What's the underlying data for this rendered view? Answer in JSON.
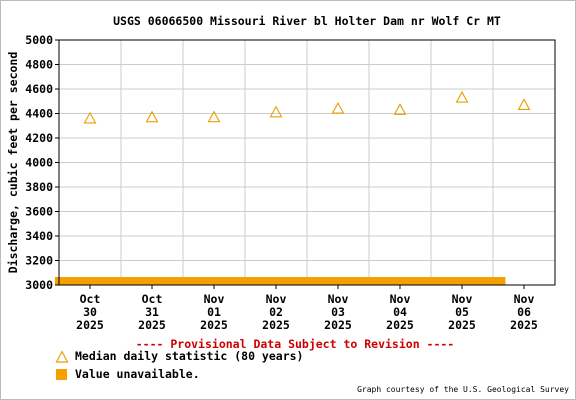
{
  "chart_data": {
    "type": "scatter",
    "title": "USGS 06066500 Missouri River bl Holter Dam nr Wolf Cr MT",
    "ylabel": "Discharge, cubic feet per second",
    "xlabel": "",
    "ylim": [
      3000,
      5000
    ],
    "yticks": [
      3000,
      3200,
      3400,
      3600,
      3800,
      4000,
      4200,
      4400,
      4600,
      4800,
      5000
    ],
    "categories": [
      "Oct 30 2025",
      "Oct 31 2025",
      "Nov 01 2025",
      "Nov 02 2025",
      "Nov 03 2025",
      "Nov 04 2025",
      "Nov 05 2025",
      "Nov 06 2025"
    ],
    "x_tick_labels": [
      {
        "month": "Oct",
        "day": "30",
        "year": "2025"
      },
      {
        "month": "Oct",
        "day": "31",
        "year": "2025"
      },
      {
        "month": "Nov",
        "day": "01",
        "year": "2025"
      },
      {
        "month": "Nov",
        "day": "02",
        "year": "2025"
      },
      {
        "month": "Nov",
        "day": "03",
        "year": "2025"
      },
      {
        "month": "Nov",
        "day": "04",
        "year": "2025"
      },
      {
        "month": "Nov",
        "day": "05",
        "year": "2025"
      },
      {
        "month": "Nov",
        "day": "06",
        "year": "2025"
      }
    ],
    "series": [
      {
        "name": "Median daily statistic (80 years)",
        "values": [
          4360,
          4370,
          4370,
          4410,
          4440,
          4430,
          4530,
          4470
        ],
        "color": "#e8a000",
        "marker": "triangle"
      }
    ],
    "unavailable": {
      "name": "Value unavailable.",
      "from": "Oct 30 2025",
      "to": "Nov 06 2025",
      "color": "#f5a000"
    },
    "grid": true,
    "annotation": "---- Provisional Data Subject to Revision ----",
    "annotation_color": "#cc0000"
  },
  "legend": {
    "median_label": "Median daily statistic (80 years)",
    "unavailable_label": "Value unavailable."
  },
  "credit": "Graph courtesy of the U.S. Geological Survey"
}
